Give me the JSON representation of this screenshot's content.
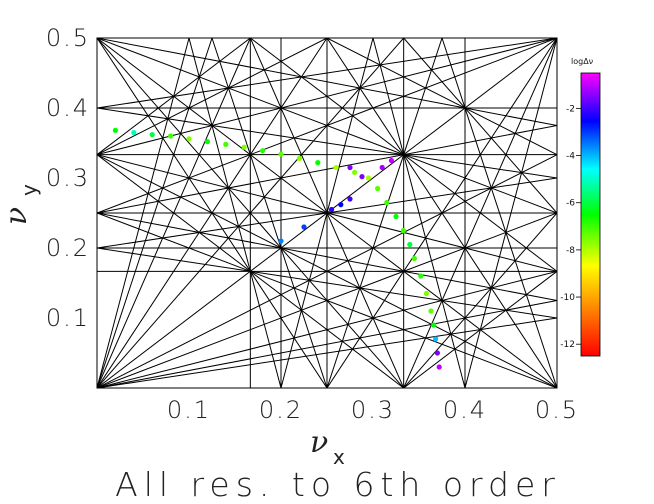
{
  "chart_data": {
    "type": "scatter",
    "title": "All res. to 6th order",
    "xlabel": "ν",
    "xlabel_sub": "x",
    "ylabel": "ν",
    "ylabel_sub": "y",
    "xlim": [
      0,
      0.5
    ],
    "ylim": [
      0,
      0.5
    ],
    "x_ticks": [
      {
        "value": 0.1,
        "label": "0.1"
      },
      {
        "value": 0.2,
        "label": "0.2"
      },
      {
        "value": 0.3,
        "label": "0.3"
      },
      {
        "value": 0.4,
        "label": "0.4"
      },
      {
        "value": 0.5,
        "label": "0.5"
      }
    ],
    "y_ticks": [
      {
        "value": 0.1,
        "label": "0.1"
      },
      {
        "value": 0.2,
        "label": "0.2"
      },
      {
        "value": 0.3,
        "label": "0.3"
      },
      {
        "value": 0.4,
        "label": "0.4"
      },
      {
        "value": 0.5,
        "label": "0.5"
      }
    ],
    "resonance_order": 6,
    "resonance_color": "#000000",
    "colorbar": {
      "title": "logΔν",
      "range": [
        -12.5,
        -0.5
      ],
      "ticks": [
        {
          "value": -2,
          "label": "-2"
        },
        {
          "value": -4,
          "label": "-4"
        },
        {
          "value": -6,
          "label": "-6"
        },
        {
          "value": -8,
          "label": "-8"
        },
        {
          "value": -10,
          "label": "-10"
        },
        {
          "value": -12,
          "label": "-12"
        }
      ],
      "colors": [
        "#ff0000",
        "#ff8000",
        "#ffff00",
        "#00ff00",
        "#00ffff",
        "#0000ff",
        "#ff00ff"
      ]
    },
    "series": [
      {
        "points": [
          {
            "x": 0.02,
            "y": 0.368,
            "c": -6.5
          },
          {
            "x": 0.04,
            "y": 0.365,
            "c": -5.0
          },
          {
            "x": 0.06,
            "y": 0.362,
            "c": -6.0
          },
          {
            "x": 0.08,
            "y": 0.36,
            "c": -7.0
          },
          {
            "x": 0.1,
            "y": 0.356,
            "c": -7.5
          },
          {
            "x": 0.12,
            "y": 0.352,
            "c": -6.5
          },
          {
            "x": 0.14,
            "y": 0.348,
            "c": -7.0
          },
          {
            "x": 0.16,
            "y": 0.344,
            "c": -7.5
          },
          {
            "x": 0.18,
            "y": 0.339,
            "c": -6.8
          },
          {
            "x": 0.2,
            "y": 0.334,
            "c": -7.2
          },
          {
            "x": 0.22,
            "y": 0.328,
            "c": -7.5
          },
          {
            "x": 0.24,
            "y": 0.322,
            "c": -6.5
          },
          {
            "x": 0.26,
            "y": 0.315,
            "c": -7.8
          },
          {
            "x": 0.28,
            "y": 0.308,
            "c": -7.5
          },
          {
            "x": 0.295,
            "y": 0.3,
            "c": -7.8
          },
          {
            "x": 0.305,
            "y": 0.285,
            "c": -7.2
          },
          {
            "x": 0.315,
            "y": 0.265,
            "c": -7.0
          },
          {
            "x": 0.325,
            "y": 0.245,
            "c": -6.5
          },
          {
            "x": 0.333,
            "y": 0.225,
            "c": -7.0
          },
          {
            "x": 0.34,
            "y": 0.205,
            "c": -6.0
          },
          {
            "x": 0.345,
            "y": 0.185,
            "c": -7.0
          },
          {
            "x": 0.352,
            "y": 0.16,
            "c": -6.8
          },
          {
            "x": 0.358,
            "y": 0.135,
            "c": -7.5
          },
          {
            "x": 0.363,
            "y": 0.11,
            "c": -7.2
          },
          {
            "x": 0.366,
            "y": 0.09,
            "c": -6.5
          },
          {
            "x": 0.368,
            "y": 0.07,
            "c": -4.0
          },
          {
            "x": 0.37,
            "y": 0.05,
            "c": -1.5
          },
          {
            "x": 0.372,
            "y": 0.03,
            "c": -1.0
          },
          {
            "x": 0.288,
            "y": 0.302,
            "c": -1.5
          },
          {
            "x": 0.275,
            "y": 0.27,
            "c": -2.0
          },
          {
            "x": 0.265,
            "y": 0.262,
            "c": -2.5
          },
          {
            "x": 0.255,
            "y": 0.255,
            "c": -2.2
          },
          {
            "x": 0.225,
            "y": 0.23,
            "c": -3.0
          },
          {
            "x": 0.2,
            "y": 0.21,
            "c": -3.5
          },
          {
            "x": 0.31,
            "y": 0.315,
            "c": -1.2
          },
          {
            "x": 0.32,
            "y": 0.325,
            "c": -1.0
          },
          {
            "x": 0.275,
            "y": 0.315,
            "c": -1.5
          }
        ]
      }
    ]
  }
}
